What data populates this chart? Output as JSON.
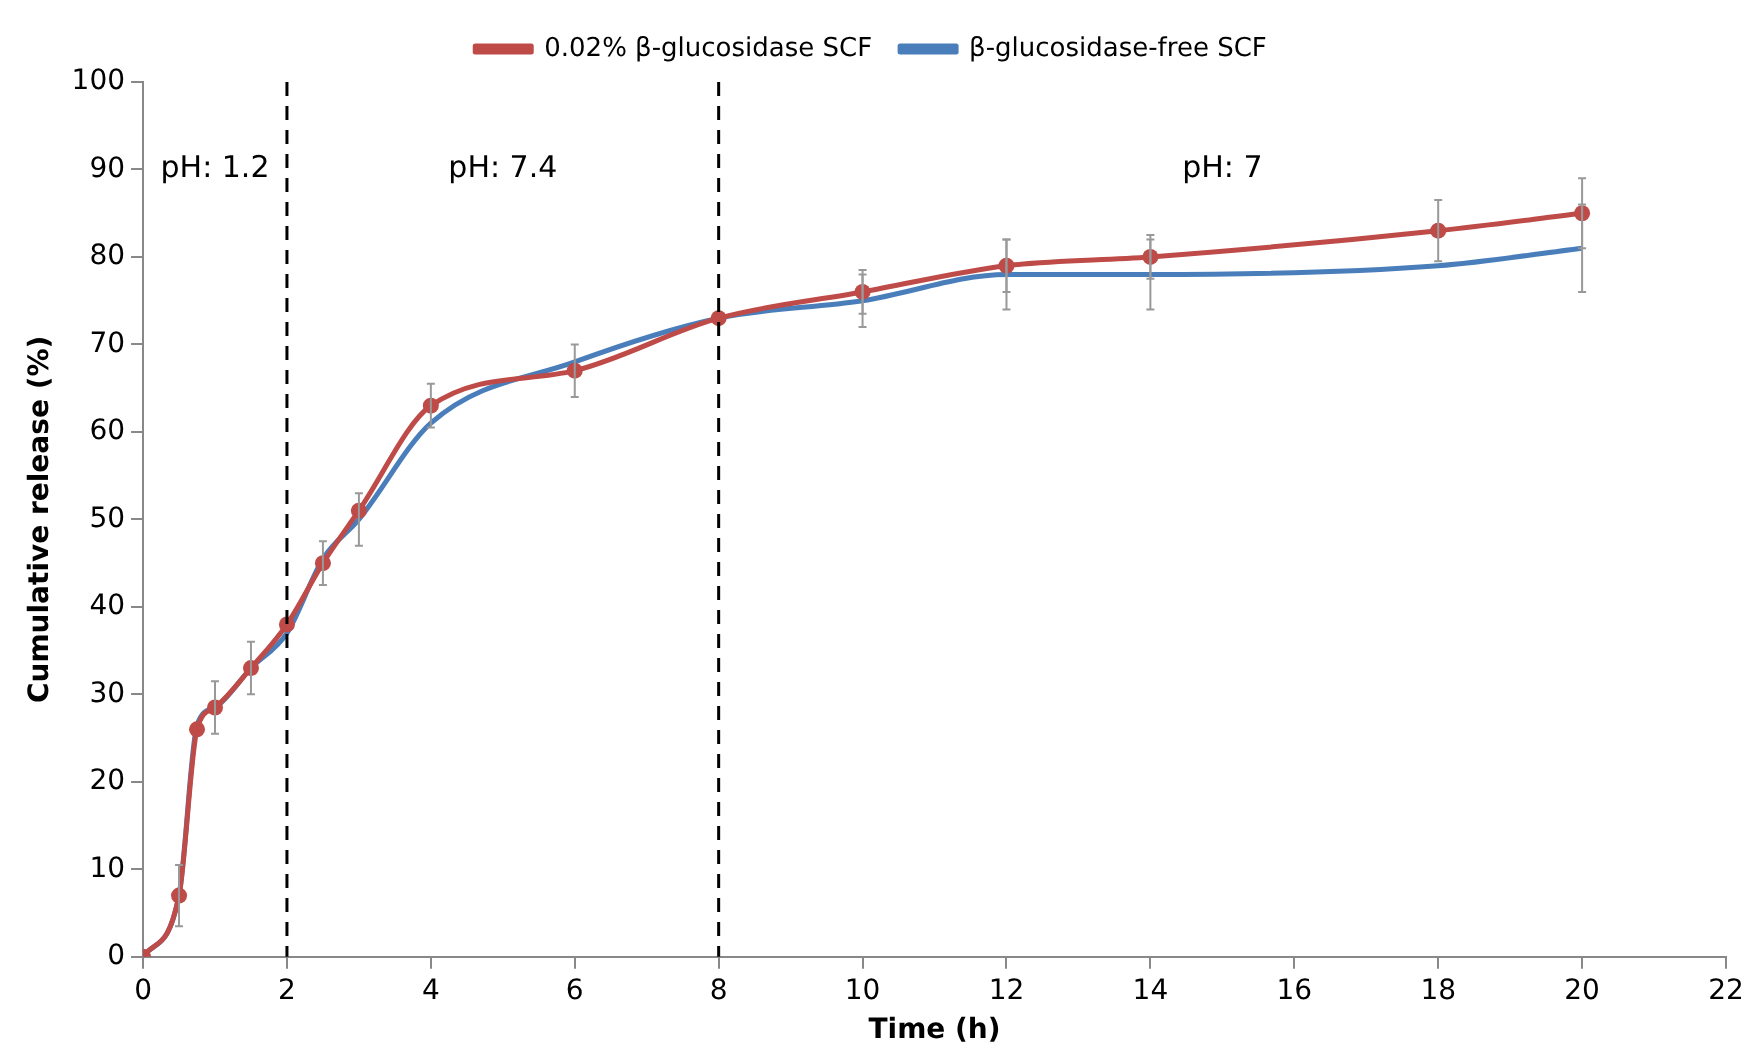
{
  "chart_data": {
    "type": "line",
    "xlabel": "Time (h)",
    "ylabel": "Cumulative release (%)",
    "x": [
      0,
      0.5,
      0.75,
      1,
      1.5,
      2,
      2.5,
      3,
      4,
      6,
      8,
      10,
      12,
      14,
      18,
      20
    ],
    "series": [
      {
        "name": "β-glucosidase-free SCF",
        "color": "#4a7ebb",
        "marker": "none",
        "values": [
          0,
          7,
          26.5,
          28.5,
          33,
          37,
          45.5,
          50,
          61,
          68,
          73,
          75,
          78,
          78,
          79,
          81
        ],
        "errors": [
          null,
          null,
          null,
          null,
          null,
          null,
          null,
          3,
          null,
          null,
          null,
          3,
          4,
          4,
          null,
          5
        ]
      },
      {
        "name": "0.02% β-glucosidase SCF",
        "color": "#be4b48",
        "marker": "circle",
        "values": [
          0,
          7,
          26,
          28.5,
          33,
          38,
          45,
          51,
          63,
          67,
          73,
          76,
          79,
          80,
          83,
          85
        ],
        "errors": [
          null,
          3.5,
          null,
          3,
          3,
          null,
          2.5,
          null,
          2.5,
          3,
          null,
          2.5,
          3,
          2.5,
          3.5,
          4
        ]
      }
    ],
    "xlim": [
      0,
      22
    ],
    "xticks": [
      0,
      2,
      4,
      6,
      8,
      10,
      12,
      14,
      16,
      18,
      20,
      22
    ],
    "ylim": [
      0,
      100
    ],
    "yticks": [
      0,
      10,
      20,
      30,
      40,
      50,
      60,
      70,
      80,
      90,
      100
    ],
    "ref_lines": [
      {
        "axis": "x",
        "value": 2,
        "color": "#000000",
        "line_style": "dashed"
      },
      {
        "axis": "x",
        "value": 8,
        "color": "#000000",
        "line_style": "dashed"
      }
    ],
    "annotations": [
      "pH: 1.2",
      "pH: 7.4",
      "pH: 7"
    ],
    "legend": "top",
    "grid": false,
    "line_style": "solid"
  }
}
